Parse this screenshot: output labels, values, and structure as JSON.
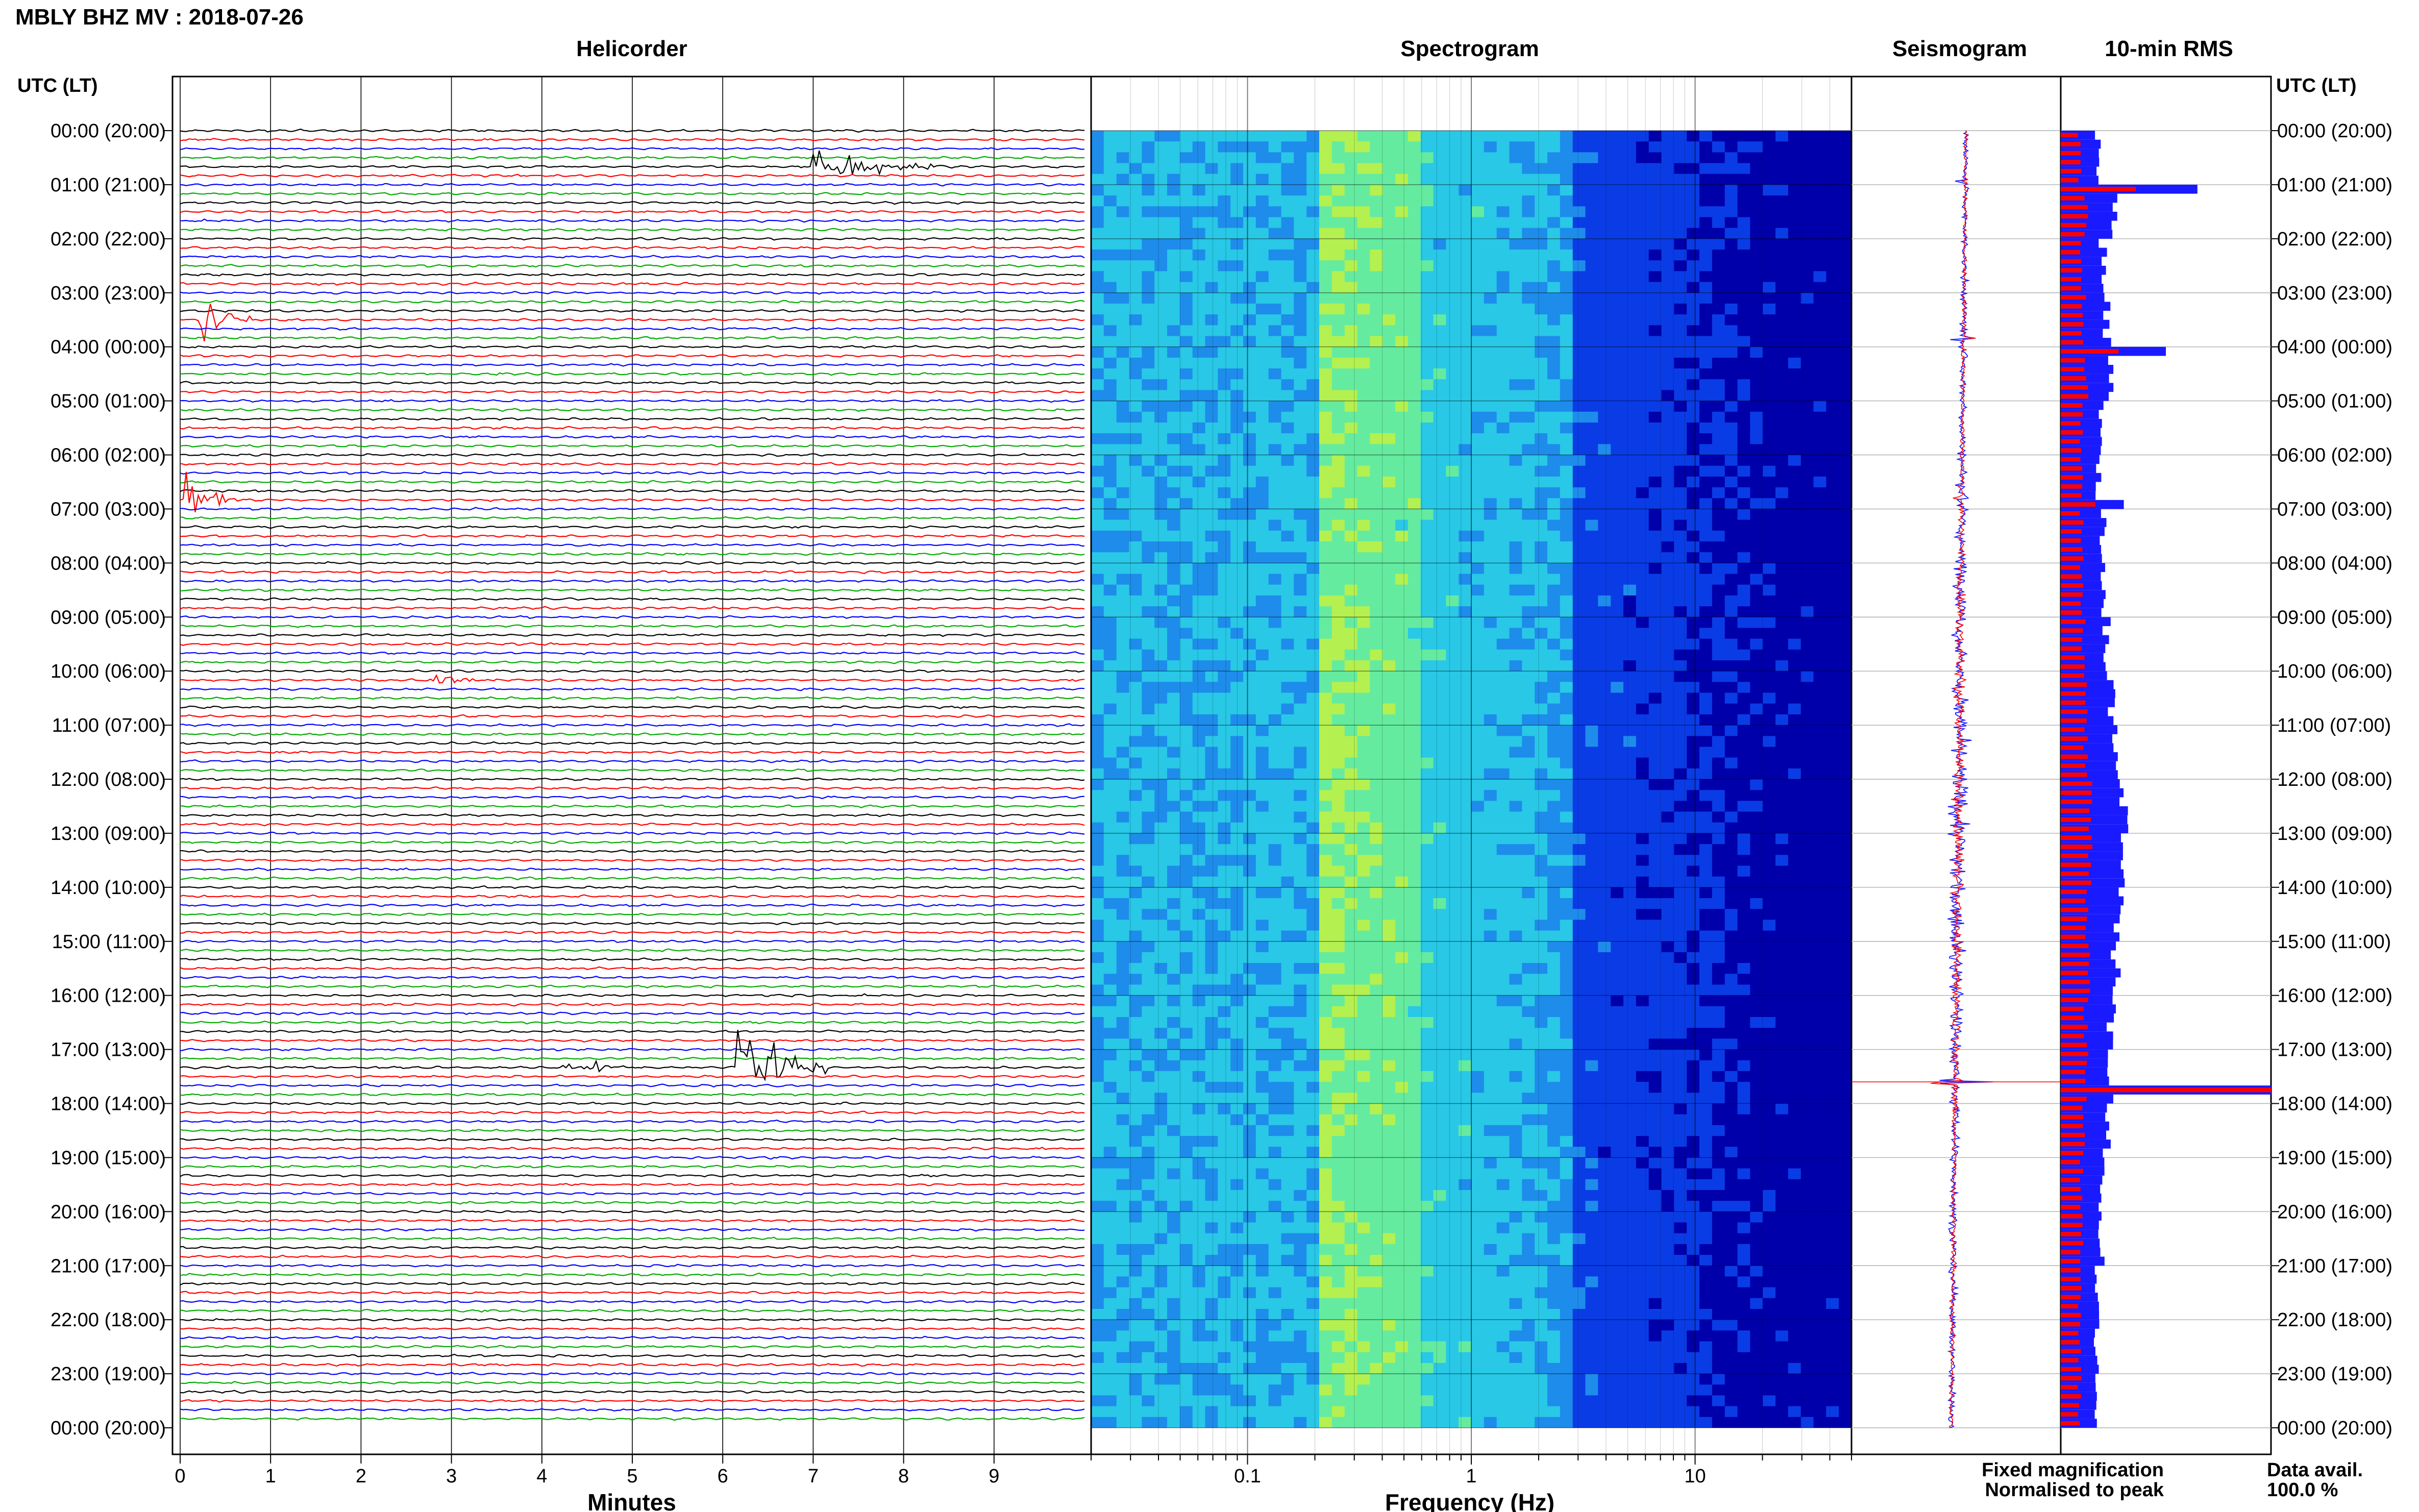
{
  "header": {
    "title": "MBLY BHZ MV : 2018-07-26"
  },
  "panels": {
    "helicorder": "Helicorder",
    "spectrogram": "Spectrogram",
    "seismogram": "Seismogram",
    "rms": "10-min RMS"
  },
  "axes": {
    "time_axis_label": "UTC (LT)",
    "helicorder_xlabel": "Minutes",
    "spectrogram_xlabel": "Frequency (Hz)"
  },
  "legend": {
    "fixed": "Fixed magnification",
    "normalised": "Normalised to peak",
    "fixed_color": "#1a1aff",
    "normalised_color": "#ff0000"
  },
  "data_availability": {
    "label": "Data avail.",
    "value": "100.0 %"
  },
  "chart_data": [
    {
      "type": "line",
      "panel": "Helicorder",
      "xlabel": "Minutes",
      "x_ticks": [
        "0",
        "1",
        "2",
        "3",
        "4",
        "5",
        "6",
        "7",
        "8",
        "9"
      ],
      "xlim": [
        0,
        10
      ],
      "row_count": 144,
      "row_minutes": 10,
      "trace_colors": [
        "#000000",
        "#ff0000",
        "#0000ff",
        "#00aa00"
      ],
      "time_labels": [
        "00:00 (20:00)",
        "01:00 (21:00)",
        "02:00 (22:00)",
        "03:00 (23:00)",
        "04:00 (00:00)",
        "05:00 (01:00)",
        "06:00 (02:00)",
        "07:00 (03:00)",
        "08:00 (04:00)",
        "09:00 (05:00)",
        "10:00 (06:00)",
        "11:00 (07:00)",
        "12:00 (08:00)",
        "13:00 (09:00)",
        "14:00 (10:00)",
        "15:00 (11:00)",
        "16:00 (12:00)",
        "17:00 (13:00)",
        "18:00 (14:00)",
        "19:00 (15:00)",
        "20:00 (16:00)",
        "21:00 (17:00)",
        "22:00 (18:00)",
        "23:00 (19:00)",
        "00:00 (20:00)"
      ],
      "events": [
        {
          "hour": 0.75,
          "minute": 7.0,
          "amplitude": "medium",
          "duration_min": 1.5
        },
        {
          "hour": 3.5,
          "minute": 0.2,
          "amplitude": "large",
          "duration_min": 0.6
        },
        {
          "hour": 6.85,
          "minute": 0.05,
          "amplitude": "large",
          "duration_min": 0.6
        },
        {
          "hour": 10.3,
          "minute": 2.8,
          "amplitude": "small",
          "duration_min": 0.8
        },
        {
          "hour": 17.4,
          "minute": 4.2,
          "amplitude": "small",
          "duration_min": 0.5
        },
        {
          "hour": 17.4,
          "minute": 4.6,
          "amplitude": "small",
          "duration_min": 0.4
        },
        {
          "hour": 17.4,
          "minute": 6.15,
          "amplitude": "very large",
          "duration_min": 1.0
        }
      ]
    },
    {
      "type": "heatmap",
      "panel": "Spectrogram",
      "xlabel": "Frequency (Hz)",
      "x_scale": "log",
      "xlim": [
        0.02,
        50
      ],
      "x_ticks": [
        "0.1",
        "1",
        "10"
      ],
      "colormap": [
        "#0000aa",
        "#0a3ce6",
        "#1e8ceb",
        "#28c8e6",
        "#64eba0",
        "#b4f050"
      ],
      "band_notes": "low energy below 0.2 Hz, microseism peak 0.2-0.5 Hz, decreasing above 2 Hz"
    },
    {
      "type": "line",
      "panel": "Seismogram",
      "series": [
        {
          "name": "Fixed magnification",
          "color": "#1a1aff"
        },
        {
          "name": "Normalised to peak",
          "color": "#ff0000"
        }
      ],
      "spikes_hours": [
        0.95,
        3.85,
        6.8,
        10.35,
        17.6
      ]
    },
    {
      "type": "bar",
      "panel": "10-min RMS",
      "orientation": "horizontal",
      "categories_hours": [
        0,
        1,
        2,
        3,
        4,
        5,
        6,
        7,
        8,
        9,
        10,
        11,
        12,
        13,
        14,
        15,
        16,
        17,
        18,
        19,
        20,
        21,
        22,
        23
      ],
      "series": [
        {
          "name": "Fixed magnification",
          "color": "#1a1aff",
          "values": [
            0.18,
            0.25,
            0.2,
            0.22,
            0.24,
            0.2,
            0.18,
            0.2,
            0.2,
            0.22,
            0.24,
            0.26,
            0.3,
            0.3,
            0.28,
            0.26,
            0.24,
            0.24,
            0.22,
            0.2,
            0.19,
            0.18,
            0.17,
            0.16
          ]
        },
        {
          "name": "Normalised to peak",
          "color": "#ff0000",
          "values": [
            0.09,
            0.12,
            0.1,
            0.11,
            0.12,
            0.1,
            0.1,
            0.1,
            0.1,
            0.11,
            0.12,
            0.12,
            0.14,
            0.14,
            0.13,
            0.13,
            0.12,
            0.12,
            0.11,
            0.1,
            0.1,
            0.09,
            0.09,
            0.09
          ]
        }
      ],
      "peaks": [
        {
          "hour": 0.95,
          "value": 0.65
        },
        {
          "hour": 3.95,
          "value": 0.5
        },
        {
          "hour": 6.8,
          "value": 0.3
        },
        {
          "hour": 17.6,
          "value": 1.0
        }
      ]
    }
  ]
}
